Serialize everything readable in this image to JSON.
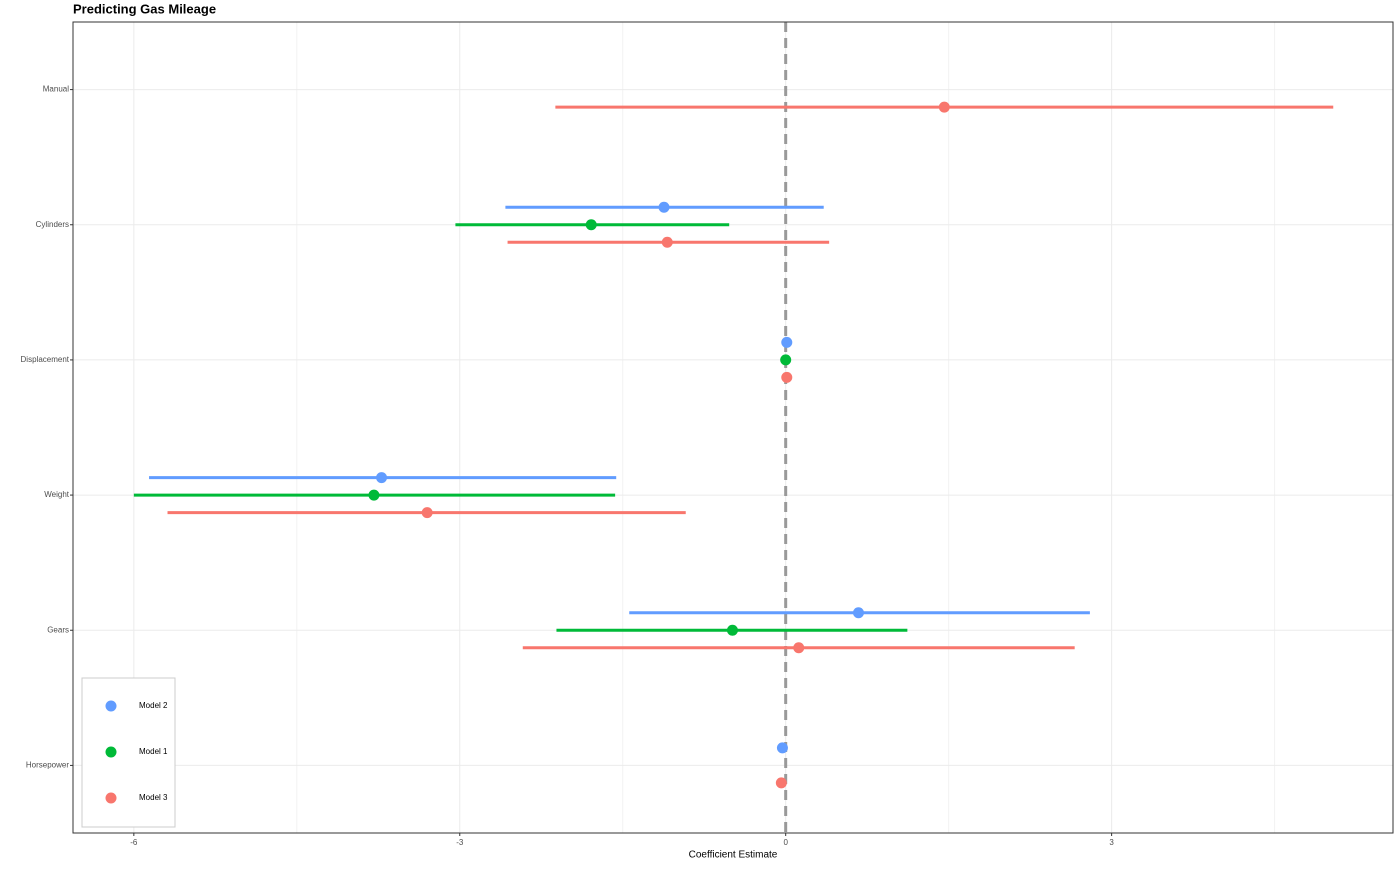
{
  "chart_data": {
    "type": "coefficient",
    "title": "Predicting Gas Mileage",
    "x_label": "Coefficient Estimate",
    "categories": [
      "Manual",
      "Cylinders",
      "Displacement",
      "Weight",
      "Gears",
      "Horsepower"
    ],
    "series": [
      {
        "name": "Model 2",
        "color": "#619CFF",
        "values": [
          null,
          -1.12,
          0.01,
          -3.72,
          0.67,
          -0.03
        ],
        "lower": [
          null,
          -2.58,
          -0.01,
          -5.86,
          -1.44,
          -0.05
        ],
        "upper": [
          null,
          0.35,
          0.03,
          -1.56,
          2.8,
          -0.01
        ]
      },
      {
        "name": "Model 1",
        "color": "#00BA38",
        "values": [
          null,
          -1.79,
          0.0,
          -3.79,
          -0.49,
          null
        ],
        "lower": [
          null,
          -3.04,
          -0.02,
          -6.0,
          -2.11,
          null
        ],
        "upper": [
          null,
          -0.52,
          0.02,
          -1.57,
          1.12,
          null
        ]
      },
      {
        "name": "Model 3",
        "color": "#F8766D",
        "values": [
          1.46,
          -1.09,
          0.01,
          -3.3,
          0.12,
          -0.04
        ],
        "lower": [
          -2.12,
          -2.56,
          -0.01,
          -5.69,
          -2.42,
          -0.06
        ],
        "upper": [
          5.04,
          0.4,
          0.03,
          -0.92,
          2.66,
          -0.02
        ]
      }
    ],
    "xlim": [
      -6.56,
      5.59
    ],
    "xticks": [
      -6,
      -3,
      0,
      3
    ],
    "minor_xticks": [
      -4.5,
      -1.5,
      1.5,
      4.5
    ],
    "grid": true,
    "legend_position": "bottom-left"
  }
}
